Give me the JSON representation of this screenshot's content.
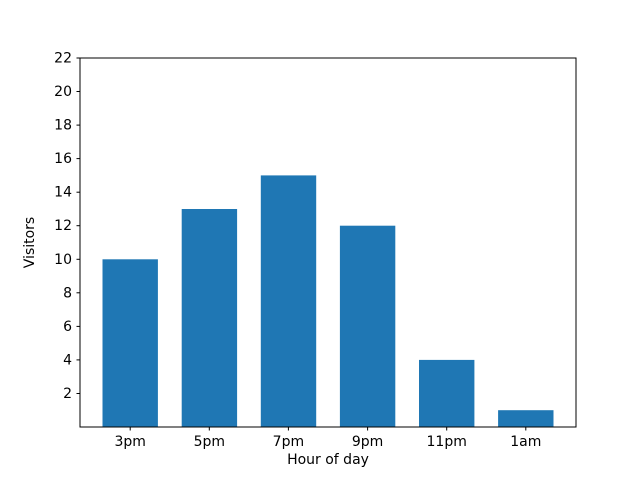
{
  "figure": {
    "background_color": "#ffffff"
  },
  "chart_data": {
    "type": "bar",
    "title": "",
    "categories": [
      "3pm",
      "5pm",
      "7pm",
      "9pm",
      "11pm",
      "1am"
    ],
    "values": [
      10,
      13,
      15,
      12,
      4,
      1
    ],
    "xlabel": "Hour of day",
    "ylabel": "Visitors",
    "ylim": [
      0,
      22
    ],
    "yticks": [
      2,
      4,
      6,
      8,
      10,
      12,
      14,
      16,
      18,
      20,
      22
    ],
    "bar_color": "#1f77b4",
    "axis_color": "#000000",
    "text_color": "#000000",
    "grid": false,
    "legend": null
  }
}
